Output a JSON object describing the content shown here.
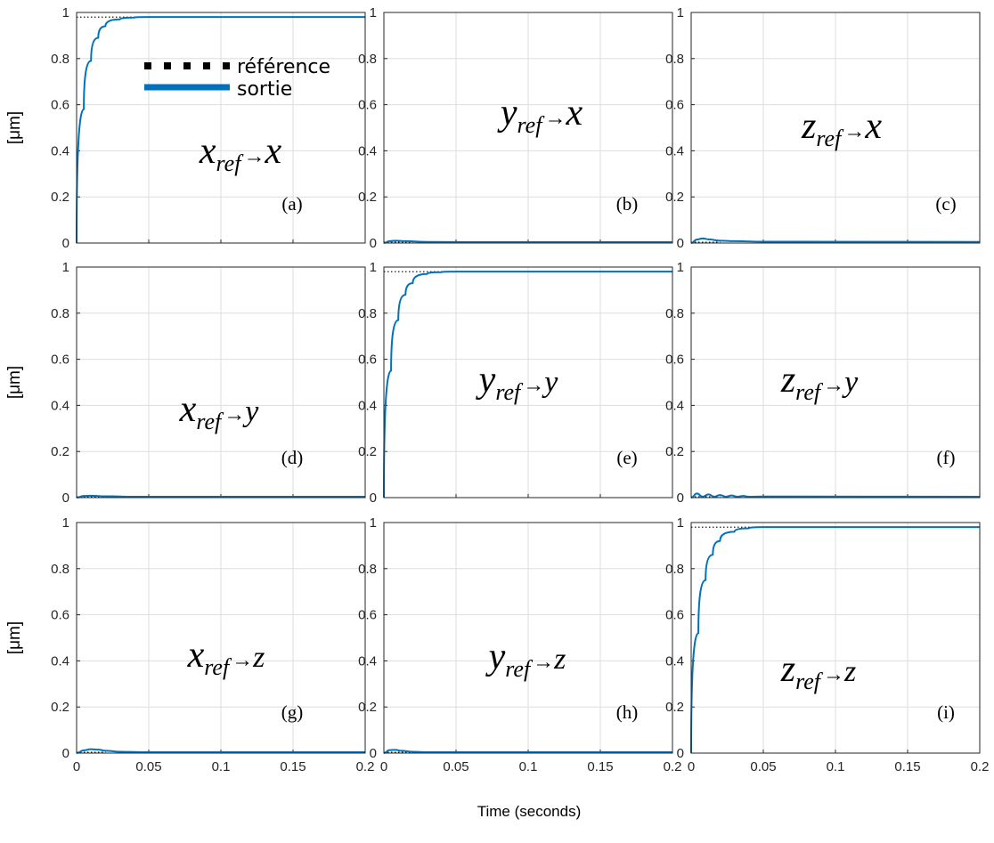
{
  "chart_data": {
    "type": "line",
    "layout": "3x3 grid of step-response subplots",
    "xlabel": "Time (seconds)",
    "ylabel": "[μm]",
    "xlim": [
      0,
      0.2
    ],
    "ylim": [
      0,
      1
    ],
    "xticks": [
      "0",
      "0.05",
      "0.1",
      "0.15",
      "0.2"
    ],
    "yticks": [
      "0",
      "0.2",
      "0.4",
      "0.6",
      "0.8",
      "1"
    ],
    "grid": true,
    "legend": {
      "placement": "top-left of panel (a)",
      "entries": [
        {
          "label": "référence",
          "style": "dotted",
          "color": "#000000"
        },
        {
          "label": "sortie",
          "style": "solid",
          "color": "#0072BD"
        }
      ]
    },
    "colors": {
      "output": "#0072BD",
      "reference": "#000000"
    },
    "steady_state": 0.98,
    "panels": [
      {
        "tag": "(a)",
        "base": "x",
        "sub": "ref",
        "target": "x",
        "kind": "direct",
        "reference_level": 0.98,
        "output": {
          "x": [
            0,
            0.005,
            0.01,
            0.015,
            0.02,
            0.03,
            0.04,
            0.05,
            0.06,
            0.1,
            0.2
          ],
          "y": [
            0,
            0.58,
            0.79,
            0.89,
            0.94,
            0.97,
            0.978,
            0.98,
            0.98,
            0.98,
            0.98
          ]
        }
      },
      {
        "tag": "(b)",
        "base": "y",
        "sub": "ref",
        "target": "x",
        "kind": "coupling",
        "reference_level": 0,
        "output": {
          "x": [
            0,
            0.004,
            0.008,
            0.015,
            0.03,
            0.06,
            0.2
          ],
          "y": [
            0,
            0.008,
            0.01,
            0.008,
            0.005,
            0.004,
            0.004
          ]
        }
      },
      {
        "tag": "(c)",
        "base": "z",
        "sub": "ref",
        "target": "x",
        "kind": "coupling",
        "reference_level": 0,
        "output": {
          "x": [
            0,
            0.004,
            0.008,
            0.012,
            0.02,
            0.03,
            0.05,
            0.2
          ],
          "y": [
            0,
            0.015,
            0.02,
            0.016,
            0.01,
            0.008,
            0.006,
            0.005
          ]
        }
      },
      {
        "tag": "(d)",
        "base": "x",
        "sub": "ref",
        "target": "y",
        "kind": "coupling",
        "reference_level": 0,
        "output": {
          "x": [
            0,
            0.005,
            0.01,
            0.02,
            0.04,
            0.2
          ],
          "y": [
            0,
            0.007,
            0.008,
            0.006,
            0.004,
            0.004
          ]
        }
      },
      {
        "tag": "(e)",
        "base": "y",
        "sub": "ref",
        "target": "y",
        "kind": "direct",
        "reference_level": 0.98,
        "output": {
          "x": [
            0,
            0.005,
            0.01,
            0.015,
            0.02,
            0.03,
            0.04,
            0.05,
            0.06,
            0.1,
            0.2
          ],
          "y": [
            0,
            0.55,
            0.77,
            0.88,
            0.93,
            0.97,
            0.978,
            0.98,
            0.98,
            0.98,
            0.98
          ]
        }
      },
      {
        "tag": "(f)",
        "base": "z",
        "sub": "ref",
        "target": "y",
        "kind": "coupling",
        "reference_level": 0,
        "output": {
          "x": [
            0,
            0.004,
            0.008,
            0.012,
            0.016,
            0.02,
            0.024,
            0.028,
            0.032,
            0.036,
            0.04,
            0.05,
            0.2
          ],
          "y": [
            0,
            0.018,
            0.004,
            0.014,
            0.004,
            0.011,
            0.004,
            0.009,
            0.004,
            0.007,
            0.004,
            0.005,
            0.004
          ]
        }
      },
      {
        "tag": "(g)",
        "base": "x",
        "sub": "ref",
        "target": "z",
        "kind": "coupling",
        "reference_level": 0,
        "output": {
          "x": [
            0,
            0.005,
            0.01,
            0.015,
            0.02,
            0.03,
            0.05,
            0.2
          ],
          "y": [
            0,
            0.012,
            0.017,
            0.015,
            0.01,
            0.006,
            0.004,
            0.004
          ]
        }
      },
      {
        "tag": "(h)",
        "base": "y",
        "sub": "ref",
        "target": "z",
        "kind": "coupling",
        "reference_level": 0,
        "output": {
          "x": [
            0,
            0.004,
            0.008,
            0.012,
            0.02,
            0.03,
            0.2
          ],
          "y": [
            0,
            0.013,
            0.014,
            0.01,
            0.006,
            0.004,
            0.004
          ]
        }
      },
      {
        "tag": "(i)",
        "base": "z",
        "sub": "ref",
        "target": "z",
        "kind": "direct",
        "reference_level": 0.98,
        "output": {
          "x": [
            0,
            0.005,
            0.01,
            0.015,
            0.02,
            0.03,
            0.04,
            0.05,
            0.06,
            0.1,
            0.2
          ],
          "y": [
            0,
            0.52,
            0.75,
            0.86,
            0.92,
            0.96,
            0.975,
            0.98,
            0.98,
            0.98,
            0.98
          ]
        }
      }
    ]
  }
}
